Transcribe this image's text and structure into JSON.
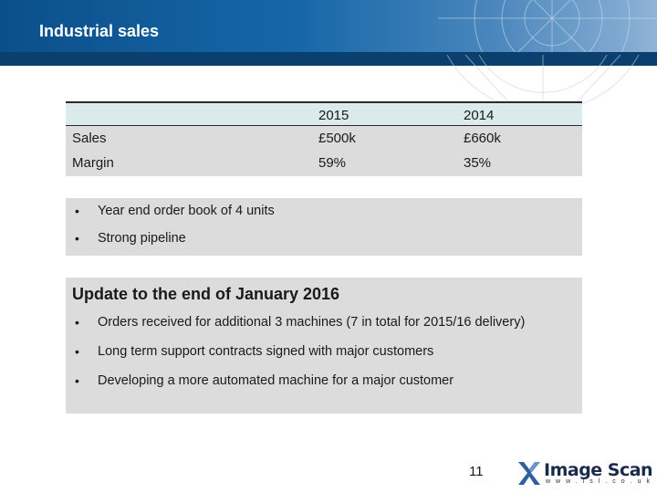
{
  "slide": {
    "title": "Industrial sales",
    "page_number": "11"
  },
  "table": {
    "columns": [
      "",
      "2015",
      "2014"
    ],
    "rows": [
      {
        "label": "Sales",
        "y2015": "£500k",
        "y2014": "£660k"
      },
      {
        "label": "Margin",
        "y2015": "59%",
        "y2014": "35%"
      }
    ]
  },
  "box1": {
    "bullets": [
      "Year end order book of 4 units",
      "Strong pipeline"
    ]
  },
  "box2": {
    "title": "Update to the end of January 2016",
    "bullets": [
      "Orders received for additional 3 machines (7 in total for 2015/16 delivery)",
      "Long term support contracts signed with major customers",
      "Developing a more automated machine for a major customer"
    ]
  },
  "logo": {
    "name": "Image Scan",
    "url": "www.isl.co.uk"
  },
  "bullet_char": "•",
  "colors": {
    "header_blue": "#1667a8",
    "header_band": "#0a3f6e",
    "table_head": "#dbeaea",
    "box_gray": "#dcdcdc"
  }
}
